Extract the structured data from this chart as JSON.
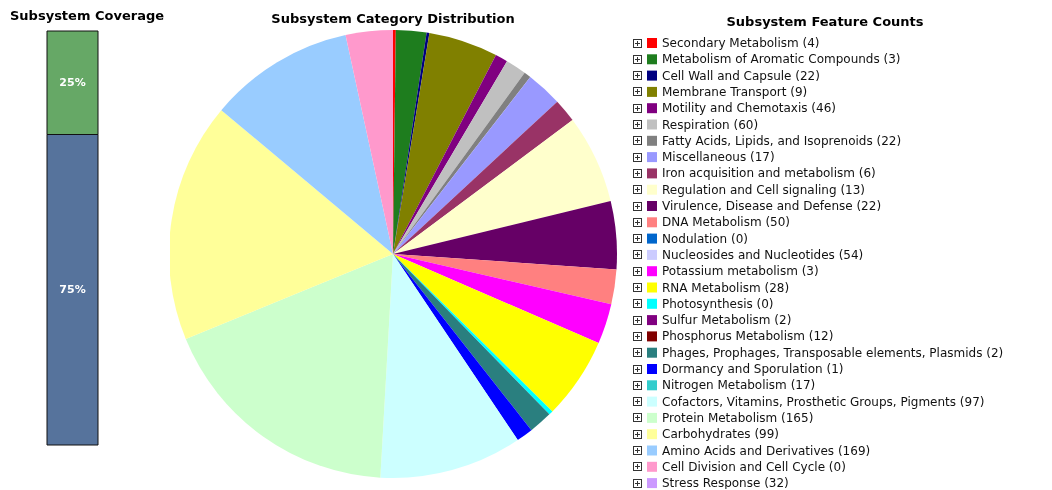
{
  "chart_data": [
    {
      "type": "bar",
      "title": "Subsystem Coverage",
      "categories": [
        null
      ],
      "stacked": true,
      "series": [
        {
          "color": "#56739c",
          "values": [
            75
          ],
          "value_labels": [
            "75%"
          ]
        },
        {
          "color": "#66a866",
          "values": [
            25
          ],
          "value_labels": [
            "25%"
          ]
        }
      ]
    },
    {
      "type": "pie",
      "title": "Subsystem Category Distribution",
      "legend_title": "Subsystem Feature Counts",
      "legend": "right",
      "categories": [
        "Secondary Metabolism (4)",
        "Metabolism of Aromatic Compounds (3)",
        "Cell Wall and Capsule (22)",
        "Membrane Transport (9)",
        "Motility and Chemotaxis (46)",
        "Respiration (60)",
        "Fatty Acids, Lipids, and Isoprenoids (22)",
        "Miscellaneous (17)",
        "Iron acquisition and metabolism (6)",
        "Regulation and Cell signaling (13)",
        "Virulence, Disease and Defense (22)",
        "DNA Metabolism (50)",
        "Nodulation (0)",
        "Nucleosides and Nucleotides (54)",
        "Potassium metabolism (3)",
        "RNA Metabolism (28)",
        "Photosynthesis (0)",
        "Sulfur Metabolism (2)",
        "Phosphorus Metabolism (12)",
        "Phages, Prophages, Transposable elements, Plasmids (2)",
        "Dormancy and Sporulation (1)",
        "Nitrogen Metabolism (17)",
        "Cofactors, Vitamins, Prosthetic Groups, Pigments (97)",
        "Protein Metabolism (165)",
        "Carbohydrates (99)",
        "Amino Acids and Derivatives (169)",
        "Cell Division and Cell Cycle (0)",
        "Stress Response (32)"
      ],
      "values": [
        0.2,
        2.2,
        0.2,
        5.0,
        0.9,
        1.5,
        0.5,
        2.6,
        1.7,
        6.4,
        4.9,
        2.5,
        0,
        0,
        2.9,
        5.9,
        0.3,
        0,
        0,
        1.7,
        1.2,
        0,
        10.3,
        17.9,
        17.3,
        10.5,
        3.4,
        0
      ],
      "colors": [
        "#ff0000",
        "#1e7d1e",
        "#000080",
        "#808000",
        "#800080",
        "#c0c0c0",
        "#808080",
        "#9999ff",
        "#993366",
        "#ffffcc",
        "#660066",
        "#ff8080",
        "#0066cc",
        "#ccccff",
        "#ff00ff",
        "#ffff00",
        "#00ffff",
        "#800080",
        "#800000",
        "#2a7f7f",
        "#0000ff",
        "#33cccc",
        "#ccffff",
        "#ccffcc",
        "#ffff99",
        "#99ccff",
        "#ff99cc",
        "#cc99ff"
      ]
    }
  ]
}
